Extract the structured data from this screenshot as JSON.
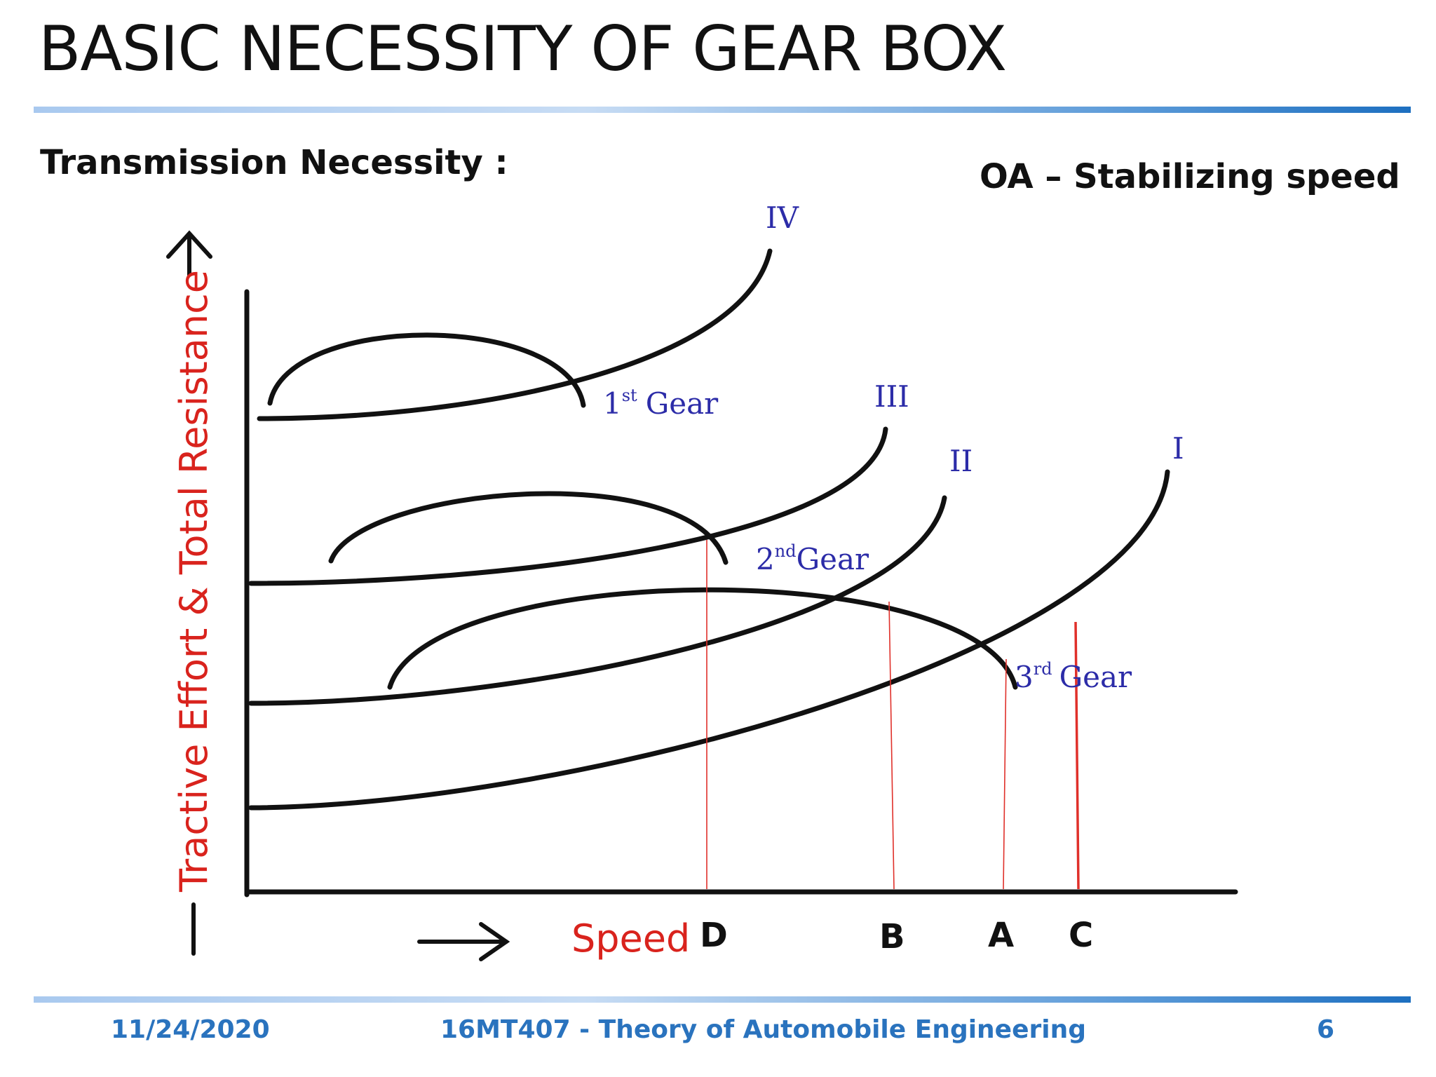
{
  "slide": {
    "title": "BASIC NECESSITY OF GEAR BOX",
    "subtitle_left": "Transmission Necessity :",
    "subtitle_right": "OA – Stabilizing speed"
  },
  "diagram": {
    "y_axis_label": "Tractive Effort & Total Resistance",
    "x_axis_label": "Speed",
    "resistance_curves": [
      "IV",
      "III",
      "II",
      "I"
    ],
    "gear_curves": [
      {
        "num": "1",
        "sup": "st",
        "word": "Gear"
      },
      {
        "num": "2",
        "sup": "nd",
        "word": "Gear"
      },
      {
        "num": "3",
        "sup": "rd",
        "word": "Gear"
      }
    ],
    "speed_points": [
      "D",
      "B",
      "A",
      "C"
    ]
  },
  "footer": {
    "date": "11/24/2020",
    "course": "16MT407 - Theory of Automobile Engineering",
    "page": "6"
  },
  "colors": {
    "axis_label_red": "#d9231d",
    "gear_label_blue": "#2c2ca8",
    "footer_blue": "#2a73be",
    "marker_line_red": "#e0302a"
  }
}
